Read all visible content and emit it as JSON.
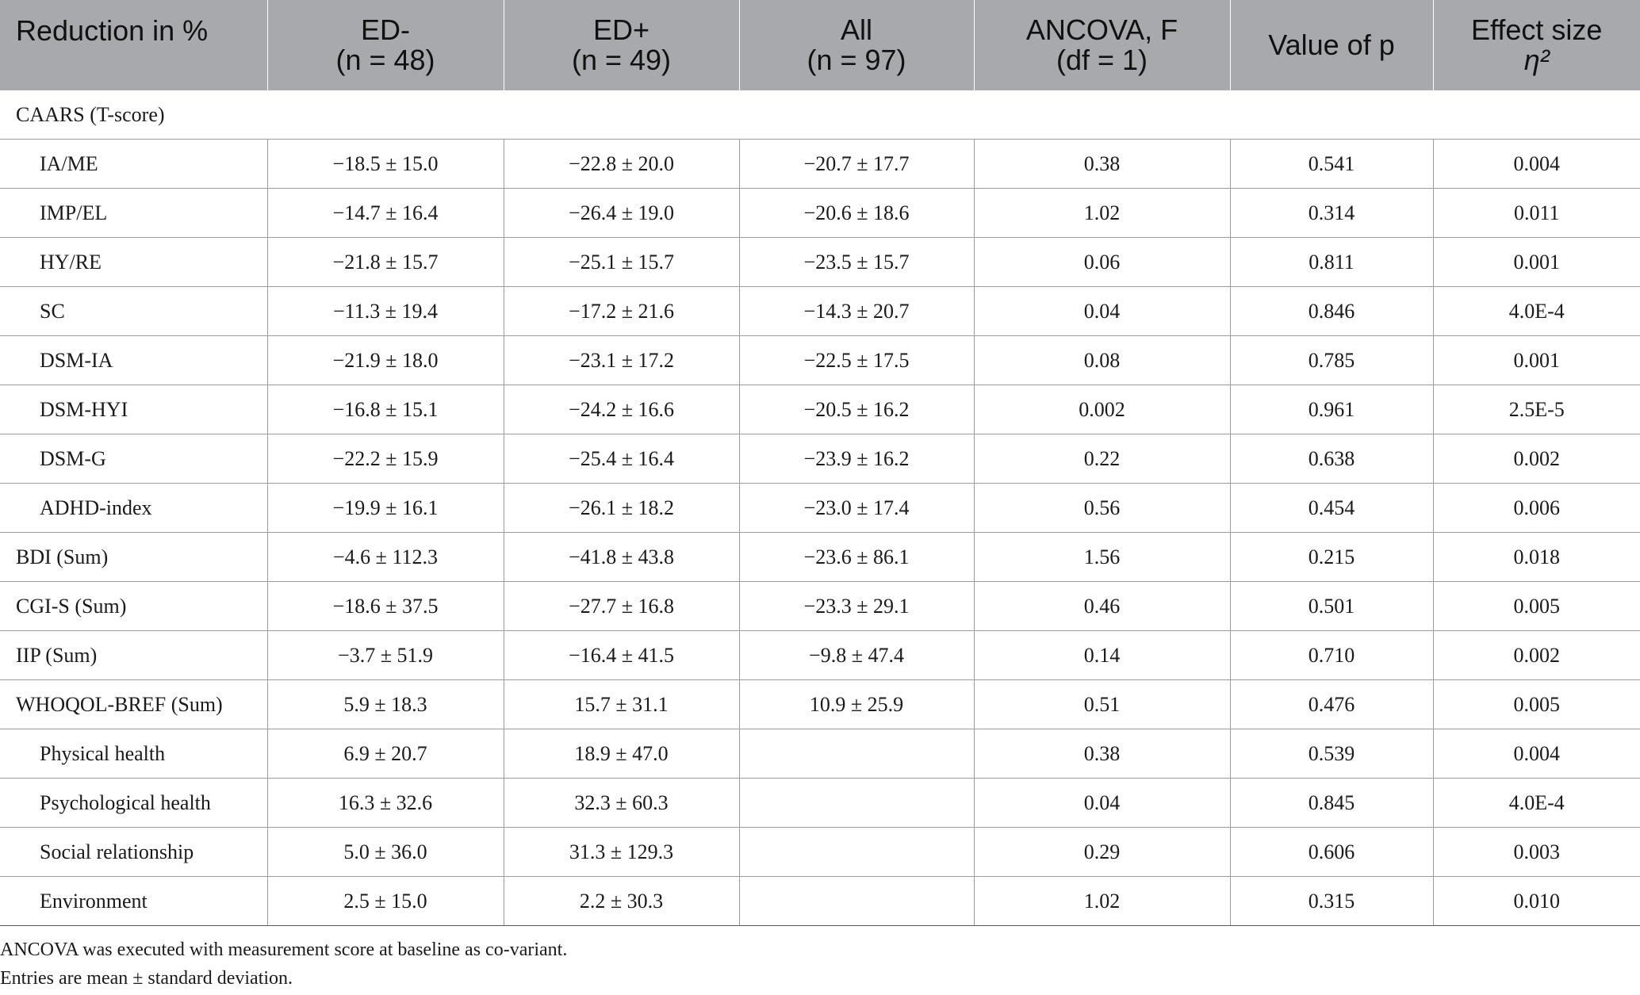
{
  "header": {
    "col0": "Reduction in %",
    "col1_a": "ED-",
    "col1_b": "(n = 48)",
    "col2_a": "ED+",
    "col2_b": "(n = 49)",
    "col3_a": "All",
    "col3_b": "(n = 97)",
    "col4_a": "ANCOVA, F",
    "col4_b": "(df = 1)",
    "col5": "Value of p",
    "col6_a": "Effect size",
    "col6_b": "η²"
  },
  "rows": [
    {
      "type": "section",
      "label": "CAARS (T-score)"
    },
    {
      "type": "sub",
      "label": "IA/ME",
      "ed_minus": "−18.5 ± 15.0",
      "ed_plus": "−22.8 ± 20.0",
      "all": "−20.7 ± 17.7",
      "f": "0.38",
      "p": "0.541",
      "eta": "0.004"
    },
    {
      "type": "sub",
      "label": "IMP/EL",
      "ed_minus": "−14.7 ± 16.4",
      "ed_plus": "−26.4 ± 19.0",
      "all": "−20.6 ± 18.6",
      "f": "1.02",
      "p": "0.314",
      "eta": "0.011"
    },
    {
      "type": "sub",
      "label": "HY/RE",
      "ed_minus": "−21.8 ± 15.7",
      "ed_plus": "−25.1 ± 15.7",
      "all": "−23.5 ± 15.7",
      "f": "0.06",
      "p": "0.811",
      "eta": "0.001"
    },
    {
      "type": "sub",
      "label": "SC",
      "ed_minus": "−11.3 ± 19.4",
      "ed_plus": "−17.2 ± 21.6",
      "all": "−14.3 ± 20.7",
      "f": "0.04",
      "p": "0.846",
      "eta": "4.0E-4"
    },
    {
      "type": "sub",
      "label": "DSM-IA",
      "ed_minus": "−21.9 ± 18.0",
      "ed_plus": "−23.1 ± 17.2",
      "all": "−22.5 ± 17.5",
      "f": "0.08",
      "p": "0.785",
      "eta": "0.001"
    },
    {
      "type": "sub",
      "label": "DSM-HYI",
      "ed_minus": "−16.8 ± 15.1",
      "ed_plus": "−24.2 ± 16.6",
      "all": "−20.5 ± 16.2",
      "f": "0.002",
      "p": "0.961",
      "eta": "2.5E-5"
    },
    {
      "type": "sub",
      "label": "DSM-G",
      "ed_minus": "−22.2 ± 15.9",
      "ed_plus": "−25.4 ± 16.4",
      "all": "−23.9 ± 16.2",
      "f": "0.22",
      "p": "0.638",
      "eta": "0.002"
    },
    {
      "type": "sub",
      "label": "ADHD-index",
      "ed_minus": "−19.9 ± 16.1",
      "ed_plus": "−26.1 ± 18.2",
      "all": "−23.0 ± 17.4",
      "f": "0.56",
      "p": "0.454",
      "eta": "0.006"
    },
    {
      "type": "main",
      "label": "BDI (Sum)",
      "ed_minus": "−4.6 ± 112.3",
      "ed_plus": "−41.8 ± 43.8",
      "all": "−23.6 ± 86.1",
      "f": "1.56",
      "p": "0.215",
      "eta": "0.018"
    },
    {
      "type": "main",
      "label": "CGI-S (Sum)",
      "ed_minus": "−18.6 ± 37.5",
      "ed_plus": "−27.7 ± 16.8",
      "all": "−23.3 ± 29.1",
      "f": "0.46",
      "p": "0.501",
      "eta": "0.005"
    },
    {
      "type": "main",
      "label": "IIP (Sum)",
      "ed_minus": "−3.7 ± 51.9",
      "ed_plus": "−16.4 ± 41.5",
      "all": "−9.8 ± 47.4",
      "f": "0.14",
      "p": "0.710",
      "eta": "0.002"
    },
    {
      "type": "main",
      "label": "WHOQOL-BREF (Sum)",
      "ed_minus": "5.9 ± 18.3",
      "ed_plus": "15.7 ± 31.1",
      "all": "10.9 ± 25.9",
      "f": "0.51",
      "p": "0.476",
      "eta": "0.005"
    },
    {
      "type": "sub",
      "label": "Physical health",
      "ed_minus": "6.9 ± 20.7",
      "ed_plus": "18.9 ± 47.0",
      "all": "",
      "f": "0.38",
      "p": "0.539",
      "eta": "0.004"
    },
    {
      "type": "sub",
      "label": "Psychological health",
      "ed_minus": "16.3 ± 32.6",
      "ed_plus": "32.3 ± 60.3",
      "all": "",
      "f": "0.04",
      "p": "0.845",
      "eta": "4.0E-4"
    },
    {
      "type": "sub",
      "label": "Social relationship",
      "ed_minus": "5.0 ± 36.0",
      "ed_plus": "31.3 ± 129.3",
      "all": "",
      "f": "0.29",
      "p": "0.606",
      "eta": "0.003"
    },
    {
      "type": "sub",
      "label": "Environment",
      "ed_minus": "2.5 ± 15.0",
      "ed_plus": "2.2 ± 30.3",
      "all": "",
      "f": "1.02",
      "p": "0.315",
      "eta": "0.010"
    }
  ],
  "notes": [
    "ANCOVA was executed with measurement score at baseline as co-variant.",
    "Entries are mean ± standard deviation."
  ]
}
